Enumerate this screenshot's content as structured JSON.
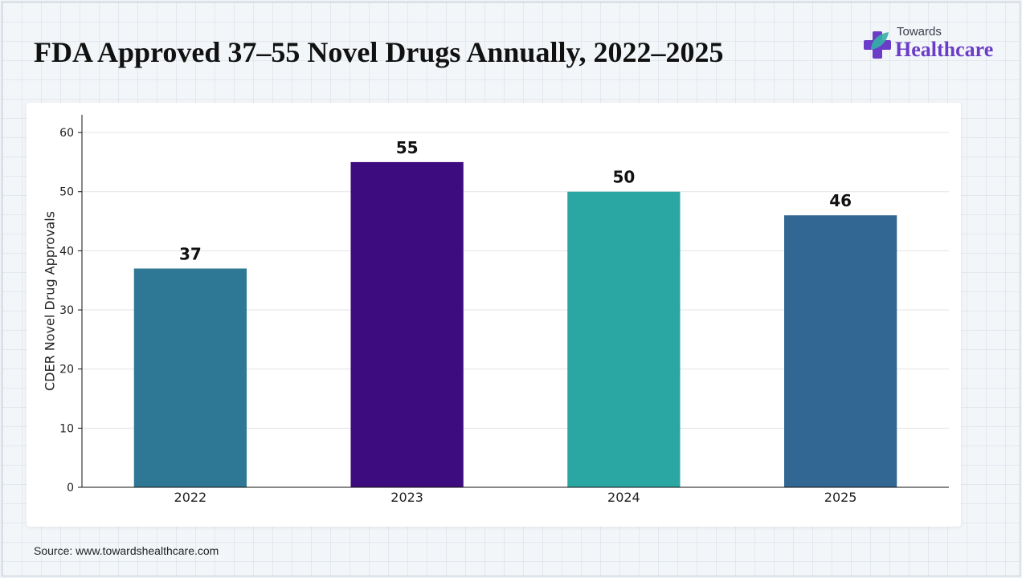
{
  "title": "FDA Approved 37–55 Novel Drugs Annually, 2022–2025",
  "logo": {
    "line1": "Towards",
    "line2": "Healthcare"
  },
  "source": "Source: www.towardshealthcare.com",
  "colors": {
    "logo_purple": "#6a3cc7",
    "logo_teal": "#34b0a6"
  },
  "chart_data": {
    "type": "bar",
    "categories": [
      "2022",
      "2023",
      "2024",
      "2025"
    ],
    "values": [
      37,
      55,
      50,
      46
    ],
    "bar_colors": [
      "#2f7895",
      "#3d0c7e",
      "#2aa7a3",
      "#326793"
    ],
    "ylabel": "CDER Novel Drug Approvals",
    "xlabel": "",
    "ylim": [
      0,
      63
    ],
    "yticks": [
      0,
      10,
      20,
      30,
      40,
      50,
      60
    ],
    "grid": true,
    "data_labels": true
  }
}
